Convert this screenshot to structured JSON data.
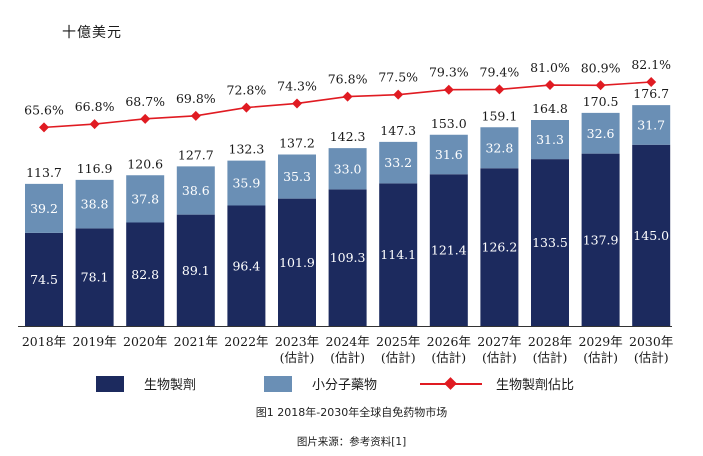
{
  "chart_data": {
    "type": "bar",
    "stacked": true,
    "unit_label": "十億美元",
    "categories": [
      "2018年",
      "2019年",
      "2020年",
      "2021年",
      "2022年",
      "2023年",
      "2024年",
      "2025年",
      "2026年",
      "2027年",
      "2028年",
      "2029年",
      "2030年"
    ],
    "category_sublabels": [
      "",
      "",
      "",
      "",
      "",
      "(估計)",
      "(估計)",
      "(估計)",
      "(估計)",
      "(估計)",
      "(估計)",
      "(估計)",
      "(估計)"
    ],
    "series": [
      {
        "name": "生物製劑",
        "color": "#1c2a5e",
        "values": [
          74.5,
          78.1,
          82.8,
          89.1,
          96.4,
          101.9,
          109.3,
          114.1,
          121.4,
          126.2,
          133.5,
          137.9,
          145.0
        ]
      },
      {
        "name": "小分子藥物",
        "color": "#6a8fb5",
        "values": [
          39.2,
          38.8,
          37.8,
          38.6,
          35.9,
          35.3,
          33.0,
          33.2,
          31.6,
          32.8,
          31.3,
          32.6,
          31.7
        ]
      }
    ],
    "totals": [
      113.7,
      116.9,
      120.6,
      127.7,
      132.3,
      137.2,
      142.3,
      147.3,
      153.0,
      159.1,
      164.8,
      170.5,
      176.7
    ],
    "line_series": {
      "name": "生物製劑佔比",
      "color": "#e01b22",
      "marker": "diamond",
      "values": [
        65.6,
        66.8,
        68.7,
        69.8,
        72.8,
        74.3,
        76.8,
        77.5,
        79.3,
        79.4,
        81.0,
        80.9,
        82.1
      ],
      "labels": [
        "65.6%",
        "66.8%",
        "68.7%",
        "69.8%",
        "72.8%",
        "74.3%",
        "76.8%",
        "77.5%",
        "79.3%",
        "79.4%",
        "81.0%",
        "80.9%",
        "82.1%"
      ]
    },
    "ylim": [
      0,
      200
    ],
    "line_ylim": [
      0,
      100
    ],
    "grid": false,
    "legend_position": "bottom"
  },
  "legend": {
    "biologics": "生物製劑",
    "small_molecule": "小分子藥物",
    "ratio": "生物製劑佔比"
  },
  "caption": "图1 2018年-2030年全球自免药物市场",
  "source": "图片来源：参考资料[1]"
}
